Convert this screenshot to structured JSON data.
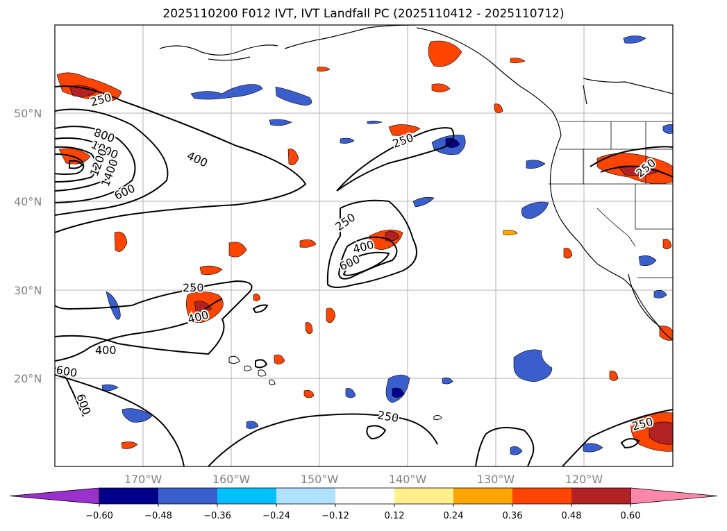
{
  "title": "2025110200 F012 IVT, IVT Landfall PC (2025110412 - 2025110712)",
  "lat_labels": [
    "50°N",
    "40°N",
    "30°N",
    "20°N"
  ],
  "lon_labels": [
    "170°W",
    "160°W",
    "150°W",
    "140°W",
    "130°W",
    "120°W"
  ],
  "colorbar": {
    "colors": [
      "#9932cc",
      "#00008b",
      "#3a5fcd",
      "#00bfff",
      "#b0e2ff",
      "#ffffff",
      "#fff08c",
      "#ffa500",
      "#ff4500",
      "#b22222",
      "#ff88aa"
    ],
    "ticks": [
      "−0.60",
      "−0.48",
      "−0.36",
      "−0.24",
      "−0.12",
      "0.12",
      "0.24",
      "0.36",
      "0.48",
      "0.60"
    ]
  },
  "contour_labels": [
    "250",
    "400",
    "600",
    "800",
    "1000",
    "1200",
    "1400",
    "250",
    "400",
    "600",
    "250",
    "400",
    "400",
    "600",
    "600",
    "250",
    "250",
    "250",
    "250"
  ]
}
